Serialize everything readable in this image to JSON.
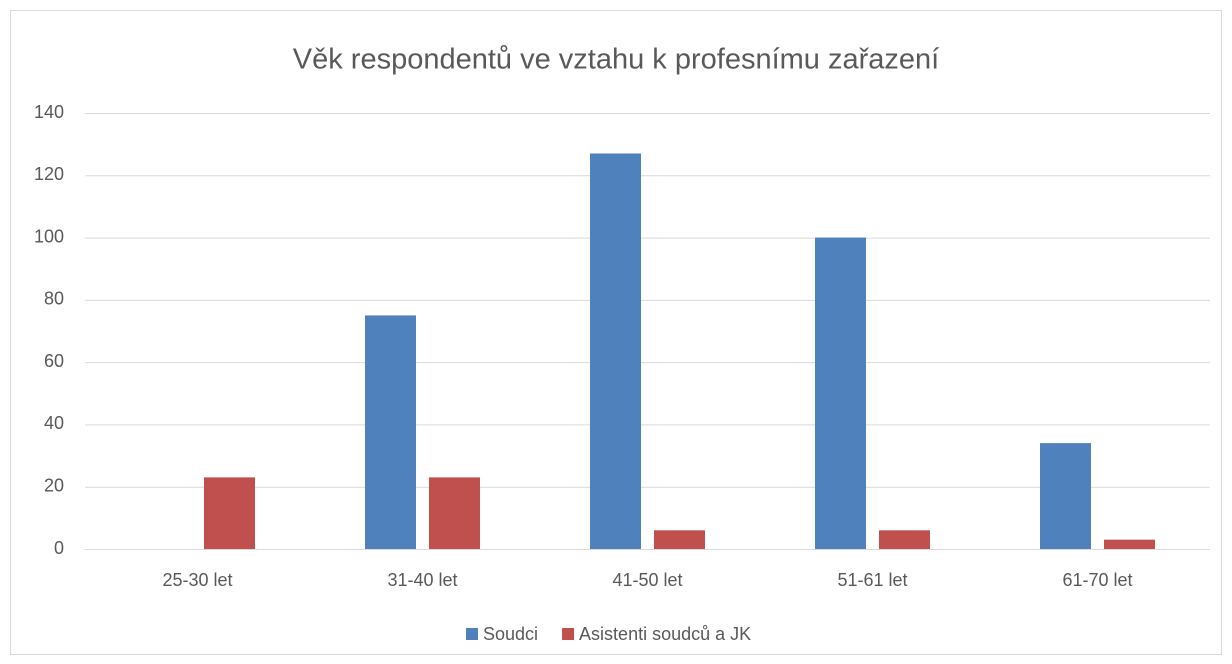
{
  "chart_data": {
    "type": "bar",
    "title": "Věk respondentů ve vztahu k profesnímu zařazení",
    "categories": [
      "25-30 let",
      "31-40 let",
      "41-50 let",
      "51-61 let",
      "61-70 let"
    ],
    "series": [
      {
        "name": "Soudci",
        "color": "#4f81bd",
        "values": [
          0,
          75,
          127,
          100,
          34
        ]
      },
      {
        "name": "Asistenti soudců a JK",
        "color": "#c0504d",
        "values": [
          23,
          23,
          6,
          6,
          3
        ]
      }
    ],
    "ylim": [
      0,
      140
    ],
    "yticks": [
      0,
      20,
      40,
      60,
      80,
      100,
      120,
      140
    ],
    "grid": true,
    "legend": "bottom"
  }
}
